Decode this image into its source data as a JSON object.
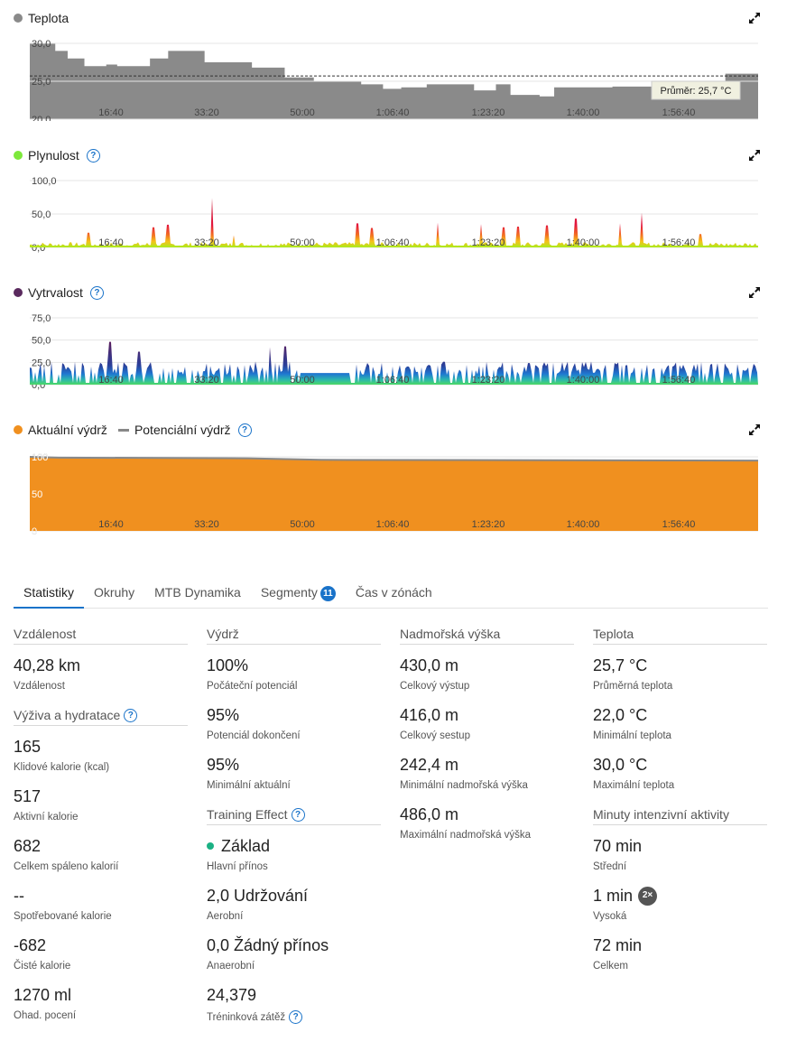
{
  "charts": {
    "teplota": {
      "title": "Teplota",
      "color": "#8a8a8a",
      "y_ticks": [
        "30,0",
        "25,0",
        "20,0"
      ],
      "x_ticks": [
        "16:40",
        "33:20",
        "50:00",
        "1:06:40",
        "1:23:20",
        "1:40:00",
        "1:56:40"
      ],
      "avg_label": "Průměr: 25,7 °C"
    },
    "plynulost": {
      "title": "Plynulost",
      "color": "#7de83b",
      "y_ticks": [
        "100,0",
        "50,0",
        "0,0"
      ],
      "x_ticks": [
        "16:40",
        "33:20",
        "50:00",
        "1:06:40",
        "1:23:20",
        "1:40:00",
        "1:56:40"
      ]
    },
    "vytrvalost": {
      "title": "Vytrvalost",
      "color": "#5a2a5e",
      "y_ticks": [
        "75,0",
        "50,0",
        "25,0",
        "0,0"
      ],
      "x_ticks": [
        "16:40",
        "33:20",
        "50:00",
        "1:06:40",
        "1:23:20",
        "1:40:00",
        "1:56:40"
      ]
    },
    "vydrz": {
      "title_actual": "Aktuální výdrž",
      "title_potential": "Potenciální výdrž",
      "color_actual": "#f0901f",
      "color_potential": "#888888",
      "y_ticks": [
        "100",
        "50",
        "0"
      ],
      "x_ticks": [
        "16:40",
        "33:20",
        "50:00",
        "1:06:40",
        "1:23:20",
        "1:40:00",
        "1:56:40"
      ]
    }
  },
  "chart_data": [
    {
      "type": "area",
      "title": "Teplota",
      "ylim": [
        20,
        30
      ],
      "x_ticks": [
        "16:40",
        "33:20",
        "50:00",
        "1:06:40",
        "1:23:20",
        "1:40:00",
        "1:56:40"
      ],
      "average": 25.7,
      "x_frac": [
        0,
        0.035,
        0.035,
        0.052,
        0.052,
        0.075,
        0.075,
        0.105,
        0.105,
        0.12,
        0.12,
        0.165,
        0.165,
        0.19,
        0.19,
        0.24,
        0.24,
        0.305,
        0.305,
        0.35,
        0.35,
        0.39,
        0.39,
        0.455,
        0.455,
        0.485,
        0.485,
        0.51,
        0.51,
        0.545,
        0.545,
        0.61,
        0.61,
        0.64,
        0.64,
        0.66,
        0.66,
        0.7,
        0.7,
        0.72,
        0.72,
        0.8,
        0.8,
        0.87,
        0.87,
        0.955,
        0.955,
        1.0
      ],
      "values": [
        30,
        30,
        29,
        29,
        28,
        28,
        27,
        27,
        27.2,
        27.2,
        27,
        27,
        28,
        28,
        29,
        29,
        27.5,
        27.5,
        26.8,
        26.8,
        25.5,
        25.5,
        25,
        25,
        24.6,
        24.6,
        24,
        24,
        24.2,
        24.2,
        24.6,
        24.6,
        23.8,
        23.8,
        24.6,
        24.6,
        23.2,
        23.2,
        23,
        23,
        24.2,
        24.2,
        24.3,
        24.3,
        24.6,
        24.6,
        26,
        26
      ]
    },
    {
      "type": "area",
      "title": "Plynulost",
      "ylim": [
        0,
        100
      ],
      "x_ticks": [
        "16:40",
        "33:20",
        "50:00",
        "1:06:40",
        "1:23:20",
        "1:40:00",
        "1:56:40"
      ],
      "peaks_x_frac": [
        0.08,
        0.17,
        0.19,
        0.25,
        0.28,
        0.45,
        0.47,
        0.56,
        0.62,
        0.65,
        0.67,
        0.71,
        0.75,
        0.81,
        0.84,
        0.92
      ],
      "peaks_values": [
        22,
        30,
        34,
        74,
        18,
        36,
        29,
        37,
        35,
        30,
        31,
        33,
        43,
        36,
        52,
        20
      ]
    },
    {
      "type": "area",
      "title": "Vytrvalost",
      "ylim": [
        0,
        75
      ],
      "x_ticks": [
        "16:40",
        "33:20",
        "50:00",
        "1:06:40",
        "1:23:20",
        "1:40:00",
        "1:56:40"
      ],
      "peaks_x_frac": [
        0.11,
        0.15,
        0.33,
        0.35
      ],
      "peaks_values": [
        48,
        37,
        42,
        43
      ]
    },
    {
      "type": "area",
      "title": "Aktuální výdrž",
      "ylim": [
        0,
        100
      ],
      "x_ticks": [
        "16:40",
        "33:20",
        "50:00",
        "1:06:40",
        "1:23:20",
        "1:40:00",
        "1:56:40"
      ],
      "series": [
        {
          "name": "Aktuální výdrž",
          "x_frac": [
            0,
            0.04,
            0.3,
            0.4,
            1
          ],
          "values": [
            100,
            99,
            98,
            96,
            95
          ]
        },
        {
          "name": "Potenciální výdrž",
          "x_frac": [
            0,
            0.04,
            0.3,
            0.4,
            1
          ],
          "values": [
            100,
            99,
            98,
            96,
            95
          ]
        }
      ]
    }
  ],
  "tabs": [
    {
      "label": "Statistiky",
      "active": true
    },
    {
      "label": "Okruhy"
    },
    {
      "label": "MTB Dynamika"
    },
    {
      "label": "Segmenty",
      "badge": "11"
    },
    {
      "label": "Čas v zónách"
    }
  ],
  "stats": {
    "vzdalenost": {
      "title": "Vzdálenost",
      "items": [
        {
          "value": "40,28 km",
          "label": "Vzdálenost"
        }
      ]
    },
    "vyziva": {
      "title": "Výživa a hydratace",
      "items": [
        {
          "value": "165",
          "label": "Klidové kalorie (kcal)"
        },
        {
          "value": "517",
          "label": "Aktivní kalorie"
        },
        {
          "value": "682",
          "label": "Celkem spáleno kalorií"
        },
        {
          "value": "--",
          "label": "Spotřebované kalorie"
        },
        {
          "value": "-682",
          "label": "Čisté kalorie"
        },
        {
          "value": "1270 ml",
          "label": "Ohad. pocení"
        }
      ]
    },
    "vydrz": {
      "title": "Výdrž",
      "items": [
        {
          "value": "100%",
          "label": "Počáteční potenciál"
        },
        {
          "value": "95%",
          "label": "Potenciál dokončení"
        },
        {
          "value": "95%",
          "label": "Minimální aktuální"
        }
      ]
    },
    "training": {
      "title": "Training Effect",
      "items": [
        {
          "value": "Základ",
          "label": "Hlavní přínos"
        },
        {
          "value": "2,0 Udržování",
          "label": "Aerobní"
        },
        {
          "value": "0,0 Žádný přínos",
          "label": "Anaerobní"
        },
        {
          "value": "24,379",
          "label": "Tréninková zátěž"
        }
      ]
    },
    "vyska": {
      "title": "Nadmořská výška",
      "items": [
        {
          "value": "430,0 m",
          "label": "Celkový výstup"
        },
        {
          "value": "416,0 m",
          "label": "Celkový sestup"
        },
        {
          "value": "242,4 m",
          "label": "Minimální nadmořská výška"
        },
        {
          "value": "486,0 m",
          "label": "Maximální nadmořská výška"
        }
      ]
    },
    "teplota": {
      "title": "Teplota",
      "items": [
        {
          "value": "25,7 °C",
          "label": "Průměrná teplota"
        },
        {
          "value": "22,0 °C",
          "label": "Minimální teplota"
        },
        {
          "value": "30,0 °C",
          "label": "Maximální teplota"
        }
      ]
    },
    "intenzita": {
      "title": "Minuty intenzivní aktivity",
      "items": [
        {
          "value": "70 min",
          "label": "Střední"
        },
        {
          "value": "1 min",
          "label": "Vysoká",
          "badge": "2×"
        },
        {
          "value": "72 min",
          "label": "Celkem"
        }
      ]
    }
  }
}
